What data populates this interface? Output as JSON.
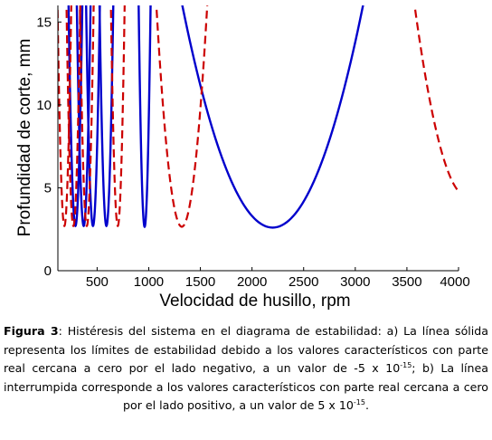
{
  "chart_data": {
    "type": "line",
    "xlabel": "Velocidad de husillo, rpm",
    "ylabel": "Profundidad de corte, mm",
    "xlim": [
      120,
      4000
    ],
    "ylim": [
      0,
      16
    ],
    "xticks": [
      500,
      1000,
      1500,
      2000,
      2500,
      3000,
      3500,
      4000
    ],
    "yticks": [
      0,
      5,
      10,
      15
    ],
    "grid": false,
    "series": [
      {
        "style": "solid",
        "color": "#0000cc",
        "lobes": [
          {
            "vertex": [
              290,
              2.7
            ],
            "a": 0.003
          },
          {
            "vertex": [
              370,
              2.7
            ],
            "a": 0.003
          },
          {
            "vertex": [
              460,
              2.7
            ],
            "a": 0.003
          },
          {
            "vertex": [
              590,
              2.7
            ],
            "a": 0.003
          },
          {
            "vertex": [
              960,
              2.65
            ],
            "a": 0.004
          },
          {
            "vertex": [
              2200,
              2.6
            ],
            "a": 1.75e-05
          }
        ]
      },
      {
        "style": "dashed",
        "color": "#cc0000",
        "lobes": [
          {
            "vertex": [
              183,
              2.7
            ],
            "a": 0.003
          },
          {
            "vertex": [
              270,
              2.7
            ],
            "a": 0.003
          },
          {
            "vertex": [
              400,
              2.7
            ],
            "a": 0.003
          },
          {
            "vertex": [
              700,
              2.7
            ],
            "a": 0.003
          },
          {
            "vertex": [
              1320,
              2.65
            ],
            "a": 0.00022
          },
          {
            "vertex": [
              4080,
              4.5
            ],
            "a": 4.5e-05
          }
        ]
      }
    ]
  },
  "caption": {
    "label": "Figura 3",
    "text_1": ": Histéresis del sistema en el diagrama de estabilidad: a) La línea sólida representa los límites de estabilidad debido a los valores característicos con parte real cercana a cero por el lado negativo, a un valor de  -5 x 10",
    "exp_1": "-15",
    "text_2": "; b) La línea interrumpida corresponde a los valores característicos con parte real cercana a cero por el lado positivo, a un valor de  5 x 10",
    "exp_2": "-15",
    "text_3": "."
  }
}
